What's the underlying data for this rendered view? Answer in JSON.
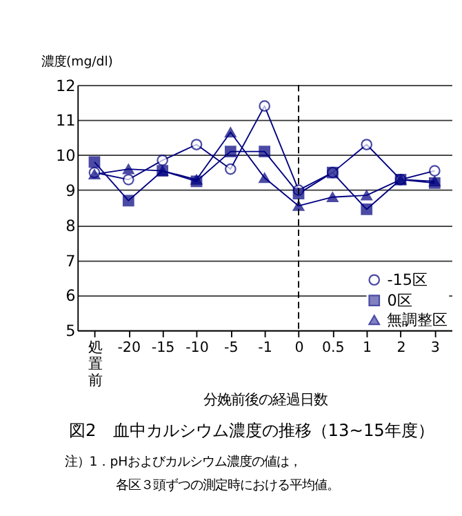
{
  "chart_data": {
    "type": "line",
    "title": "図2　血中カルシウム濃度の推移（13~15年度）",
    "xlabel": "分娩前後の経過日数",
    "ylabel": "濃度(mg/dl)",
    "categories": [
      "処置前",
      "-20",
      "-15",
      "-10",
      "-5",
      "-1",
      "0",
      "0.5",
      "1",
      "2",
      "3"
    ],
    "series": [
      {
        "name": "-15区",
        "color": "#000080",
        "marker": "circle",
        "values": [
          9.5,
          9.3,
          9.85,
          10.3,
          9.6,
          11.4,
          9.0,
          9.5,
          10.3,
          9.3,
          9.55
        ]
      },
      {
        "name": "0区",
        "color": "#000080",
        "marker": "square",
        "values": [
          9.8,
          8.7,
          9.55,
          9.25,
          10.1,
          10.1,
          8.9,
          9.5,
          8.45,
          9.3,
          9.2
        ]
      },
      {
        "name": "無調整区",
        "color": "#000080",
        "marker": "triangle",
        "values": [
          9.45,
          9.6,
          9.55,
          9.3,
          10.65,
          9.35,
          8.55,
          8.8,
          8.85,
          9.3,
          9.25
        ]
      }
    ],
    "ylim": [
      5,
      12
    ],
    "yticks": [
      5,
      6,
      7,
      8,
      9,
      10,
      11,
      12
    ],
    "grid": "y",
    "legend": "bottom right",
    "ref_lines": [
      {
        "axis": "x",
        "value": "0",
        "line_style": "dashed",
        "color": "#000000"
      }
    ],
    "annotations": [
      "注）1．pHおよびカルシウム濃度の値は，",
      "各区３頭ずつの測定時における平均値。"
    ]
  }
}
